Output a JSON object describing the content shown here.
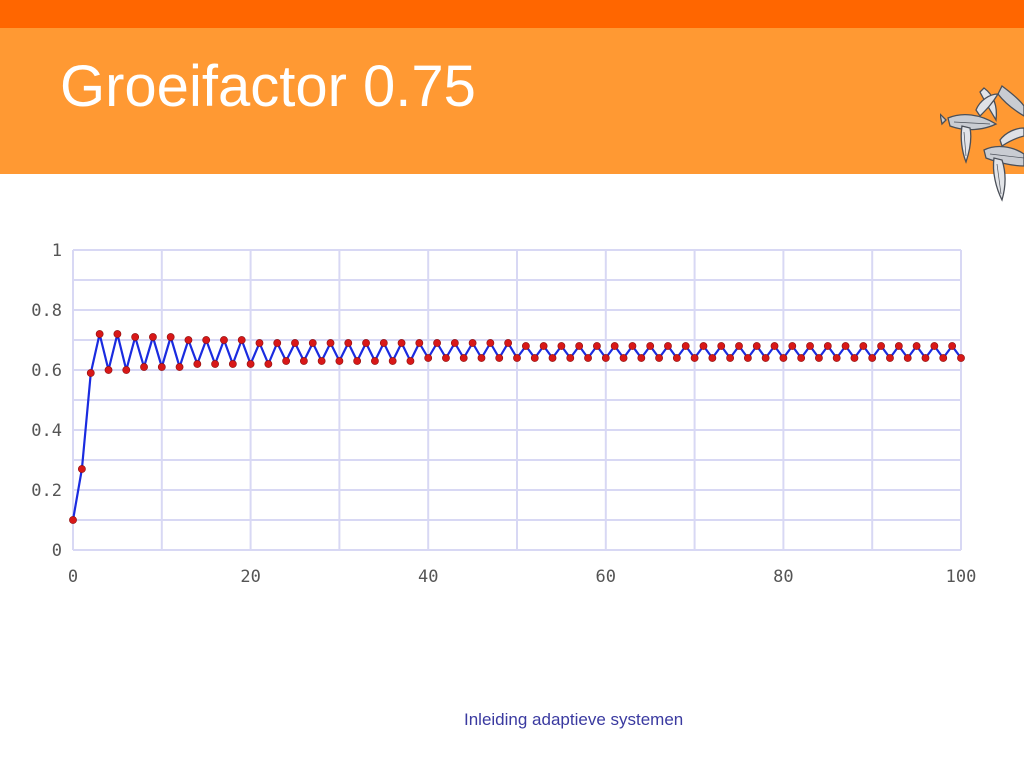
{
  "slide": {
    "title": "Groeifactor 0.75",
    "footer": "Inleiding adaptieve systemen",
    "logo_icon": "flying-fish-icon"
  },
  "colors": {
    "stripe": "#ff6600",
    "band": "#ff9933",
    "grid": "#d8d8f4",
    "line": "#1a2be0",
    "marker": "#d81818",
    "tick_text": "#555555"
  },
  "chart_data": {
    "type": "line",
    "title": "",
    "xlabel": "",
    "ylabel": "",
    "xlim": [
      0,
      100
    ],
    "ylim": [
      0,
      1
    ],
    "grid": true,
    "legend": "none",
    "x_ticks": [
      0,
      20,
      40,
      60,
      80,
      100
    ],
    "y_ticks": [
      0,
      0.2,
      0.4,
      0.6,
      0.8,
      1
    ],
    "series": [
      {
        "name": "",
        "x": [
          0,
          1,
          2,
          3,
          4,
          5,
          6,
          7,
          8,
          9,
          10,
          11,
          12,
          13,
          14,
          15,
          16,
          17,
          18,
          19,
          20,
          21,
          22,
          23,
          24,
          25,
          26,
          27,
          28,
          29,
          30,
          31,
          32,
          33,
          34,
          35,
          36,
          37,
          38,
          39,
          40,
          41,
          42,
          43,
          44,
          45,
          46,
          47,
          48,
          49,
          50,
          51,
          52,
          53,
          54,
          55,
          56,
          57,
          58,
          59,
          60,
          61,
          62,
          63,
          64,
          65,
          66,
          67,
          68,
          69,
          70,
          71,
          72,
          73,
          74,
          75,
          76,
          77,
          78,
          79,
          80,
          81,
          82,
          83,
          84,
          85,
          86,
          87,
          88,
          89,
          90,
          91,
          92,
          93,
          94,
          95,
          96,
          97,
          98,
          99,
          100
        ],
        "values": [
          0.1,
          0.27,
          0.59,
          0.72,
          0.6,
          0.72,
          0.6,
          0.71,
          0.61,
          0.71,
          0.61,
          0.71,
          0.61,
          0.7,
          0.62,
          0.7,
          0.62,
          0.7,
          0.62,
          0.7,
          0.62,
          0.69,
          0.62,
          0.69,
          0.63,
          0.69,
          0.63,
          0.69,
          0.63,
          0.69,
          0.63,
          0.69,
          0.63,
          0.69,
          0.63,
          0.69,
          0.63,
          0.69,
          0.63,
          0.69,
          0.64,
          0.69,
          0.64,
          0.69,
          0.64,
          0.69,
          0.64,
          0.69,
          0.64,
          0.69,
          0.64,
          0.68,
          0.64,
          0.68,
          0.64,
          0.68,
          0.64,
          0.68,
          0.64,
          0.68,
          0.64,
          0.68,
          0.64,
          0.68,
          0.64,
          0.68,
          0.64,
          0.68,
          0.64,
          0.68,
          0.64,
          0.68,
          0.64,
          0.68,
          0.64,
          0.68,
          0.64,
          0.68,
          0.64,
          0.68,
          0.64,
          0.68,
          0.64,
          0.68,
          0.64,
          0.68,
          0.64,
          0.68,
          0.64,
          0.68,
          0.64,
          0.68,
          0.64,
          0.68,
          0.64,
          0.68,
          0.64,
          0.68,
          0.64,
          0.68,
          0.64
        ]
      }
    ]
  }
}
